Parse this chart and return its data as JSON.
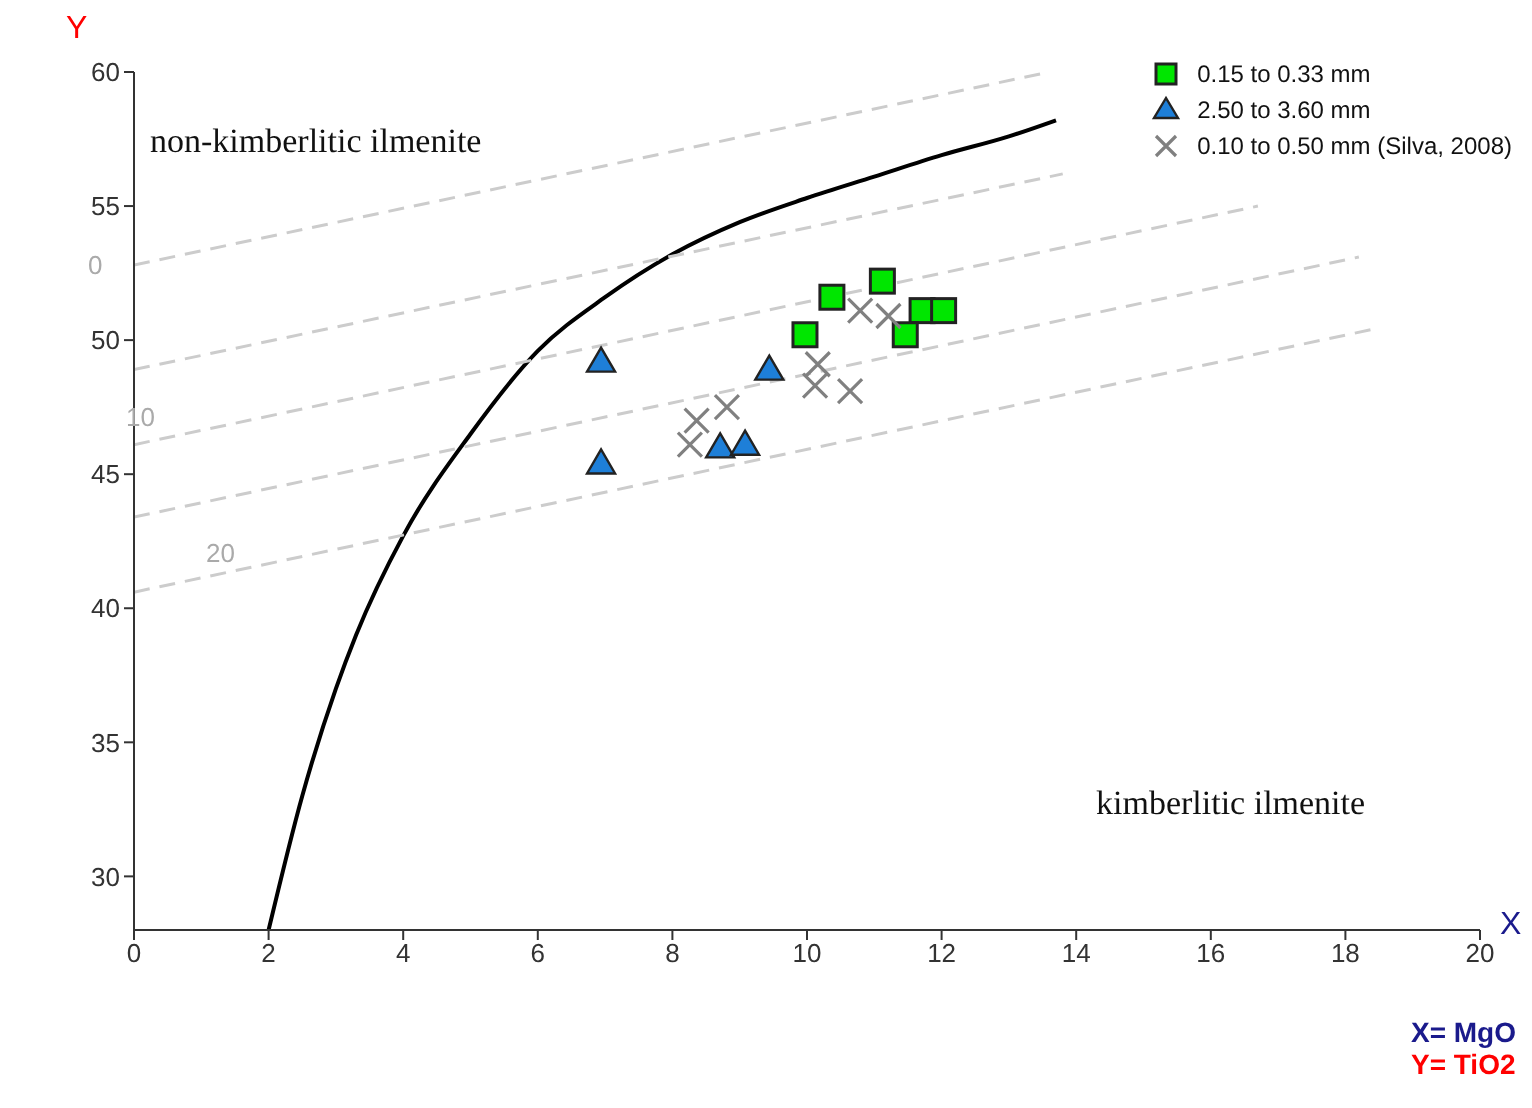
{
  "chart_data": {
    "type": "scatter",
    "xlabel": "X",
    "ylabel": "Y",
    "xlim": [
      0,
      20
    ],
    "ylim": [
      28,
      60
    ],
    "xticks": [
      0,
      2,
      4,
      6,
      8,
      10,
      12,
      14,
      16,
      18,
      20
    ],
    "yticks": [
      30,
      35,
      40,
      45,
      50,
      55,
      60
    ],
    "grid": false,
    "legend": "top right",
    "series": [
      {
        "name": "0.15 to 0.33 mm",
        "color": "#00e600",
        "marker": "square",
        "x": [
          10.37,
          11.12,
          9.97,
          11.71,
          12.03,
          11.46
        ],
        "values": [
          51.6,
          52.2,
          50.2,
          51.1,
          51.1,
          50.2
        ]
      },
      {
        "name": "2.50 to 3.60 mm",
        "color": "#1e7fd8",
        "marker": "triangle",
        "x": [
          6.94,
          6.94,
          9.44,
          8.71,
          9.08
        ],
        "values": [
          49.2,
          45.4,
          48.9,
          46.0,
          46.1
        ]
      },
      {
        "name": "0.10 to 0.50 mm (Silva, 2008)",
        "color": "#808080",
        "marker": "cross",
        "x": [
          8.36,
          8.81,
          8.26,
          10.79,
          11.21,
          10.16,
          10.12,
          10.64
        ],
        "values": [
          47.0,
          47.5,
          46.1,
          51.1,
          50.9,
          49.1,
          48.3,
          48.1
        ]
      },
      {
        "type": "line",
        "color": "#000000",
        "marker": "none",
        "line_style": "solid",
        "x": [
          2,
          2.5,
          3,
          3.3,
          4,
          5,
          6,
          7,
          8,
          9,
          10,
          11,
          12,
          13,
          13.7
        ],
        "values": [
          28,
          33,
          37,
          39,
          42.7,
          46.5,
          49.6,
          51.6,
          53.2,
          54.4,
          55.3,
          56.1,
          56.9,
          57.6,
          58.2
        ]
      },
      {
        "type": "line",
        "color": "#cccccc",
        "marker": "none",
        "line_style": "dashed",
        "x": [
          0,
          13.6
        ],
        "values": [
          52.8,
          60
        ]
      },
      {
        "type": "line",
        "color": "#cccccc",
        "marker": "none",
        "line_style": "dashed",
        "x": [
          0,
          13.8
        ],
        "values": [
          48.9,
          56.2
        ]
      },
      {
        "type": "line",
        "color": "#cccccc",
        "marker": "none",
        "line_style": "dashed",
        "x": [
          0,
          16.7
        ],
        "values": [
          46.1,
          55
        ]
      },
      {
        "type": "line",
        "color": "#cccccc",
        "marker": "none",
        "line_style": "dashed",
        "x": [
          0,
          18.2
        ],
        "values": [
          43.4,
          53.1
        ]
      },
      {
        "type": "line",
        "color": "#cccccc",
        "marker": "none",
        "line_style": "dashed",
        "x": [
          0,
          18.4
        ],
        "values": [
          40.6,
          50.4
        ]
      }
    ],
    "annotations": [
      "non-kimberlitic ilmenite",
      "kimberlitic ilmenite",
      "0",
      "10",
      "20",
      "X= MgO",
      "Y= TiO2"
    ]
  }
}
